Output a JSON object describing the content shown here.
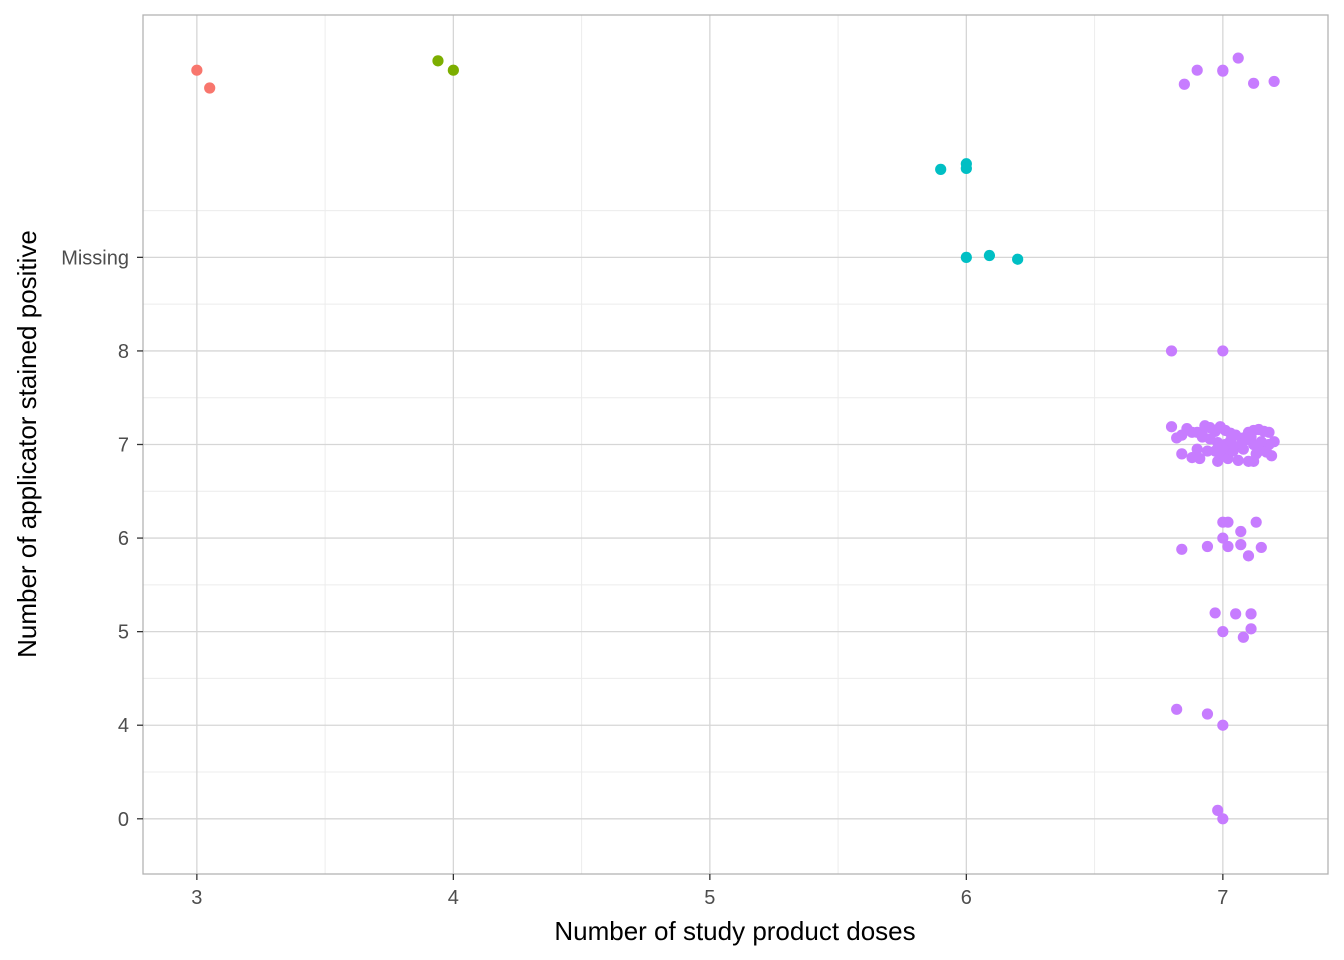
{
  "chart_data": {
    "type": "scatter",
    "title": "",
    "xlabel": "Number of study product doses",
    "ylabel": "Number of applicator stained positive",
    "xlim": [
      2.79,
      7.41
    ],
    "ylim": [
      -0.59,
      8.59
    ],
    "grid": true,
    "legend": "none",
    "x_ticks": [
      {
        "value": 3,
        "label": "3"
      },
      {
        "value": 4,
        "label": "4"
      },
      {
        "value": 5,
        "label": "5"
      },
      {
        "value": 6,
        "label": "6"
      },
      {
        "value": 7,
        "label": "7"
      }
    ],
    "x_minor_ticks": [
      3.5,
      4.5,
      5.5,
      6.5
    ],
    "y_ticks": [
      {
        "value": 0,
        "label": "0"
      },
      {
        "value": 1,
        "label": "4"
      },
      {
        "value": 2,
        "label": "5"
      },
      {
        "value": 3,
        "label": "6"
      },
      {
        "value": 4,
        "label": "7"
      },
      {
        "value": 5,
        "label": "8"
      },
      {
        "value": 6,
        "label": "Missing"
      }
    ],
    "y_minor_ticks": [
      0.5,
      1.5,
      2.5,
      3.5,
      4.5,
      5.5,
      6.5
    ],
    "series": [
      {
        "color": "#F8766D",
        "points": [
          [
            3.0,
            8.0
          ],
          [
            3.05,
            7.81
          ]
        ]
      },
      {
        "color": "#7CAE00",
        "points": [
          [
            3.94,
            8.1
          ],
          [
            4.0,
            8.0
          ]
        ]
      },
      {
        "color": "#00BFC4",
        "points": [
          [
            5.9,
            6.94
          ],
          [
            6.0,
            7.0
          ],
          [
            6.0,
            6.95
          ],
          [
            6.0,
            6.0
          ],
          [
            6.09,
            6.02
          ],
          [
            6.2,
            5.98
          ]
        ]
      },
      {
        "color": "#C77CFF",
        "points": [
          [
            7.06,
            8.13
          ],
          [
            6.9,
            8.0
          ],
          [
            7.0,
            8.0
          ],
          [
            7.0,
            7.99
          ],
          [
            6.85,
            7.85
          ],
          [
            7.12,
            7.86
          ],
          [
            7.2,
            7.88
          ],
          [
            6.8,
            5.0
          ],
          [
            7.0,
            5.0
          ],
          [
            6.8,
            4.19
          ],
          [
            6.82,
            4.07
          ],
          [
            6.84,
            4.1
          ],
          [
            6.86,
            4.17
          ],
          [
            6.88,
            4.13
          ],
          [
            6.9,
            4.13
          ],
          [
            6.92,
            4.1
          ],
          [
            6.93,
            4.2
          ],
          [
            6.95,
            4.18
          ],
          [
            6.97,
            4.14
          ],
          [
            6.99,
            4.19
          ],
          [
            7.01,
            4.15
          ],
          [
            7.03,
            4.12
          ],
          [
            7.05,
            4.1
          ],
          [
            7.08,
            4.07
          ],
          [
            7.1,
            4.13
          ],
          [
            7.12,
            4.15
          ],
          [
            7.14,
            4.16
          ],
          [
            7.16,
            4.14
          ],
          [
            7.18,
            4.13
          ],
          [
            6.84,
            3.9
          ],
          [
            6.88,
            3.86
          ],
          [
            6.9,
            3.95
          ],
          [
            6.91,
            3.85
          ],
          [
            6.94,
            3.93
          ],
          [
            6.97,
            3.93
          ],
          [
            6.98,
            3.82
          ],
          [
            7.0,
            3.9
          ],
          [
            7.02,
            3.85
          ],
          [
            7.04,
            3.93
          ],
          [
            7.06,
            3.83
          ],
          [
            7.08,
            3.95
          ],
          [
            7.1,
            3.82
          ],
          [
            7.12,
            3.82
          ],
          [
            7.14,
            3.93
          ],
          [
            7.16,
            3.97
          ],
          [
            7.19,
            3.88
          ],
          [
            7.2,
            4.03
          ],
          [
            7.18,
            4.0
          ],
          [
            7.15,
            4.03
          ],
          [
            7.12,
            4.0
          ],
          [
            7.09,
            4.05
          ],
          [
            7.07,
            4.0
          ],
          [
            7.04,
            3.98
          ],
          [
            7.01,
            4.0
          ],
          [
            6.98,
            4.02
          ],
          [
            6.95,
            4.06
          ],
          [
            6.92,
            4.08
          ],
          [
            7.0,
            3.96
          ],
          [
            7.03,
            4.04
          ],
          [
            7.11,
            4.08
          ],
          [
            7.13,
            3.9
          ],
          [
            7.17,
            3.92
          ],
          [
            7.0,
            3.17
          ],
          [
            7.02,
            3.17
          ],
          [
            7.13,
            3.17
          ],
          [
            7.07,
            3.07
          ],
          [
            7.0,
            3.0
          ],
          [
            6.84,
            2.88
          ],
          [
            6.94,
            2.91
          ],
          [
            7.02,
            2.91
          ],
          [
            7.07,
            2.93
          ],
          [
            7.15,
            2.9
          ],
          [
            7.1,
            2.81
          ],
          [
            6.97,
            2.2
          ],
          [
            7.05,
            2.19
          ],
          [
            7.11,
            2.19
          ],
          [
            7.0,
            2.0
          ],
          [
            7.11,
            2.03
          ],
          [
            7.08,
            1.94
          ],
          [
            6.82,
            1.17
          ],
          [
            6.94,
            1.12
          ],
          [
            7.0,
            1.0
          ],
          [
            6.98,
            0.09
          ],
          [
            7.0,
            0.0
          ]
        ]
      }
    ]
  }
}
